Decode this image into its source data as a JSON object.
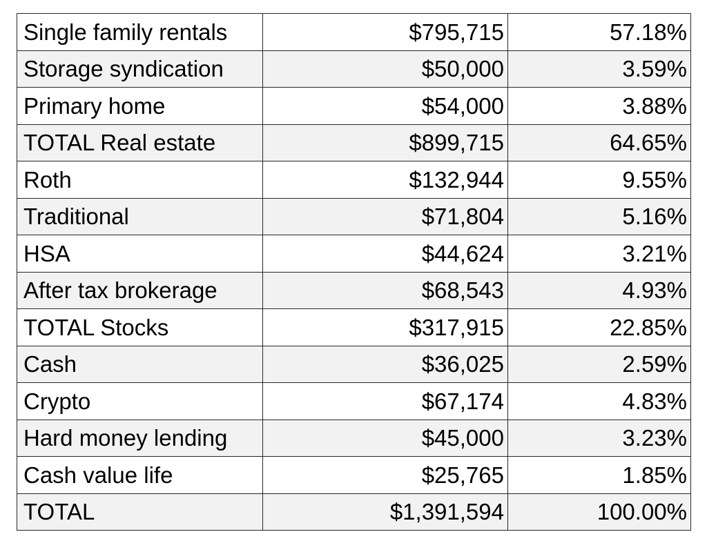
{
  "table": {
    "rows": [
      {
        "label": "Single family rentals",
        "amount": "$795,715",
        "percent": "57.18%"
      },
      {
        "label": "Storage syndication",
        "amount": "$50,000",
        "percent": "3.59%"
      },
      {
        "label": "Primary home",
        "amount": "$54,000",
        "percent": "3.88%"
      },
      {
        "label": "TOTAL Real estate",
        "amount": "$899,715",
        "percent": "64.65%"
      },
      {
        "label": "Roth",
        "amount": "$132,944",
        "percent": "9.55%"
      },
      {
        "label": "Traditional",
        "amount": "$71,804",
        "percent": "5.16%"
      },
      {
        "label": "HSA",
        "amount": "$44,624",
        "percent": "3.21%"
      },
      {
        "label": "After tax brokerage",
        "amount": "$68,543",
        "percent": "4.93%"
      },
      {
        "label": "TOTAL Stocks",
        "amount": "$317,915",
        "percent": "22.85%"
      },
      {
        "label": "Cash",
        "amount": "$36,025",
        "percent": "2.59%"
      },
      {
        "label": "Crypto",
        "amount": "$67,174",
        "percent": "4.83%"
      },
      {
        "label": "Hard money lending",
        "amount": "$45,000",
        "percent": "3.23%"
      },
      {
        "label": "Cash value life",
        "amount": "$25,765",
        "percent": "1.85%"
      },
      {
        "label": "TOTAL",
        "amount": "$1,391,594",
        "percent": "100.00%"
      }
    ]
  }
}
